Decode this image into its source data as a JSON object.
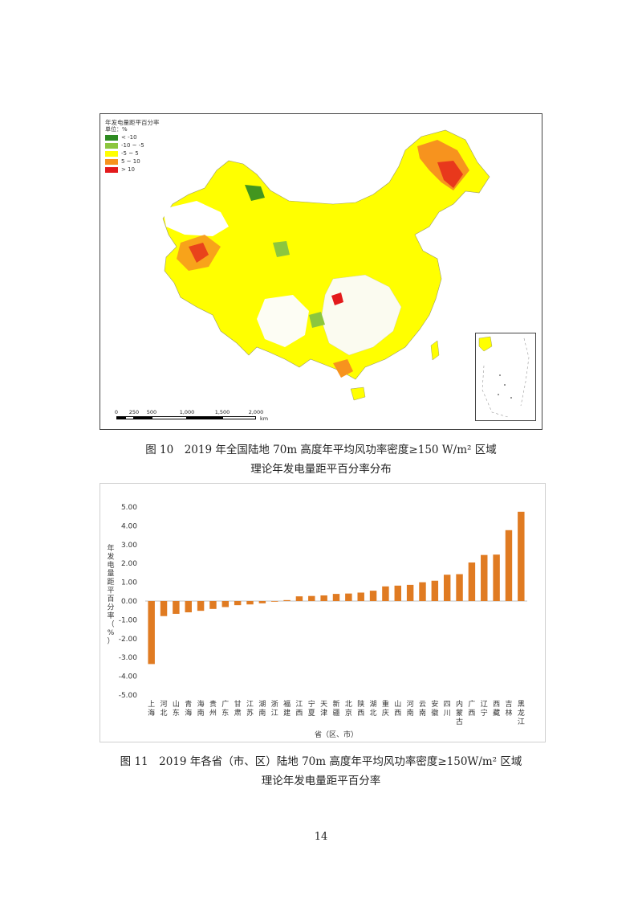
{
  "figure10": {
    "legend": {
      "title": "年发电量距平百分率",
      "unit": "单位：%",
      "items": [
        {
          "label": "< -10",
          "color": "#2e8b22"
        },
        {
          "label": "-10 ~ -5",
          "color": "#8cc63f"
        },
        {
          "label": "-5 ~ 5",
          "color": "#ffff00"
        },
        {
          "label": "5 ~ 10",
          "color": "#f7931e"
        },
        {
          "label": "> 10",
          "color": "#e31a1c"
        }
      ]
    },
    "scale": {
      "ticks": [
        "0",
        "250",
        "500",
        "1,000",
        "1,500",
        "2,000"
      ],
      "unit": "km"
    },
    "caption_line1": "图 10　2019 年全国陆地 70m 高度年平均风功率密度≥150 W/m² 区域",
    "caption_line2": "理论年发电量距平百分率分布"
  },
  "figure11": {
    "caption_line1": "图 11　2019 年各省（市、区）陆地 70m 高度年平均风功率密度≥150W/m² 区域",
    "caption_line2": "理论年发电量距平百分率"
  },
  "chart_data": {
    "type": "bar",
    "ylabel": "年发电量距平百分率（%）",
    "xlabel": "省（区、市）",
    "ylim": [
      -5.0,
      5.0
    ],
    "yticks": [
      "5.00",
      "4.00",
      "3.00",
      "2.00",
      "1.00",
      "0.00",
      "-1.00",
      "-2.00",
      "-3.00",
      "-4.00",
      "-5.00"
    ],
    "bar_color": "#e07b22",
    "grid": false,
    "categories": [
      "上海",
      "河北",
      "山东",
      "青海",
      "海南",
      "贵州",
      "广东",
      "甘肃",
      "江苏",
      "湖南",
      "浙江",
      "福建",
      "江西",
      "宁夏",
      "天津",
      "新疆",
      "北京",
      "陕西",
      "湖北",
      "重庆",
      "山西",
      "河南",
      "云南",
      "安徽",
      "四川",
      "内蒙古",
      "广西",
      "辽宁",
      "西藏",
      "吉林",
      "黑龙江"
    ],
    "values": [
      -3.35,
      -0.8,
      -0.68,
      -0.6,
      -0.52,
      -0.42,
      -0.32,
      -0.22,
      -0.18,
      -0.12,
      -0.03,
      0.05,
      0.25,
      0.27,
      0.3,
      0.38,
      0.4,
      0.45,
      0.55,
      0.78,
      0.82,
      0.86,
      1.0,
      1.08,
      1.4,
      1.43,
      2.05,
      2.45,
      2.47,
      3.77,
      4.75
    ]
  },
  "page_number": "14"
}
